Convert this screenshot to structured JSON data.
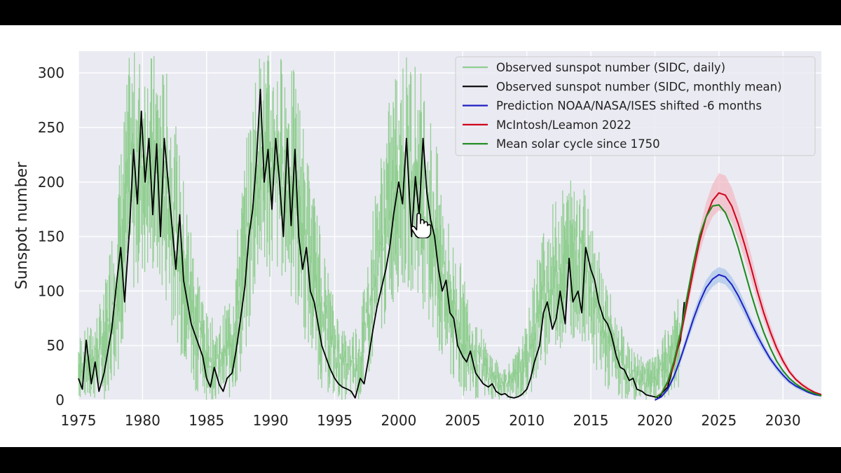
{
  "chart_data": {
    "type": "line",
    "xlim": [
      1975,
      2033
    ],
    "ylim": [
      0,
      320
    ],
    "ylabel": "Sunspot number",
    "xlabel": "",
    "grid": true,
    "legend_position": "top-right",
    "x_ticks": [
      "1975",
      "1980",
      "1985",
      "1990",
      "1995",
      "2000",
      "2005",
      "2010",
      "2015",
      "2020",
      "2025",
      "2030"
    ],
    "y_ticks": [
      "0",
      "50",
      "100",
      "150",
      "200",
      "250",
      "300"
    ],
    "series": [
      {
        "name": "Observed sunspot number (SIDC, daily)",
        "color": "#8fce8f",
        "style": "band",
        "x": [
          1975.0,
          1976.0,
          1977.0,
          1978.0,
          1979.0,
          1980.0,
          1981.0,
          1982.0,
          1983.0,
          1984.0,
          1985.0,
          1986.0,
          1987.0,
          1988.0,
          1989.0,
          1990.0,
          1991.0,
          1992.0,
          1993.0,
          1994.0,
          1995.0,
          1996.0,
          1997.0,
          1998.0,
          1999.0,
          2000.0,
          2001.0,
          2002.0,
          2003.0,
          2004.0,
          2005.0,
          2006.0,
          2007.0,
          2008.0,
          2009.0,
          2010.0,
          2011.0,
          2012.0,
          2013.0,
          2014.0,
          2015.0,
          2016.0,
          2017.0,
          2018.0,
          2019.0,
          2020.0,
          2021.0,
          2022.0
        ],
        "low": [
          0,
          0,
          0,
          20,
          90,
          110,
          110,
          80,
          40,
          10,
          0,
          0,
          0,
          30,
          110,
          110,
          110,
          80,
          40,
          10,
          0,
          0,
          0,
          30,
          70,
          100,
          100,
          80,
          40,
          15,
          0,
          0,
          0,
          0,
          0,
          0,
          20,
          40,
          50,
          60,
          40,
          10,
          0,
          0,
          0,
          0,
          0,
          10
        ],
        "high": [
          60,
          70,
          100,
          200,
          320,
          320,
          320,
          300,
          220,
          150,
          80,
          70,
          110,
          230,
          320,
          320,
          320,
          300,
          220,
          150,
          90,
          60,
          80,
          180,
          260,
          320,
          320,
          300,
          230,
          160,
          120,
          80,
          50,
          30,
          40,
          70,
          150,
          180,
          200,
          220,
          180,
          120,
          80,
          50,
          40,
          40,
          70,
          100
        ]
      },
      {
        "name": "Observed sunspot number (SIDC, monthly mean)",
        "color": "#000000",
        "style": "line",
        "x": [
          1975.0,
          1975.3,
          1975.6,
          1976.0,
          1976.3,
          1976.6,
          1977.0,
          1977.3,
          1977.6,
          1978.0,
          1978.3,
          1978.6,
          1979.0,
          1979.3,
          1979.6,
          1979.9,
          1980.2,
          1980.5,
          1980.8,
          1981.1,
          1981.4,
          1981.7,
          1982.0,
          1982.3,
          1982.6,
          1982.9,
          1983.2,
          1983.5,
          1983.8,
          1984.1,
          1984.4,
          1984.7,
          1985.0,
          1985.3,
          1985.6,
          1986.0,
          1986.3,
          1986.6,
          1987.0,
          1987.3,
          1987.6,
          1988.0,
          1988.3,
          1988.6,
          1988.9,
          1989.2,
          1989.5,
          1989.8,
          1990.1,
          1990.4,
          1990.7,
          1991.0,
          1991.3,
          1991.6,
          1991.9,
          1992.2,
          1992.5,
          1992.8,
          1993.1,
          1993.4,
          1993.7,
          1994.0,
          1994.3,
          1994.6,
          1995.0,
          1995.3,
          1995.6,
          1996.0,
          1996.3,
          1996.6,
          1997.0,
          1997.3,
          1997.6,
          1998.0,
          1998.3,
          1998.6,
          1999.0,
          1999.3,
          1999.6,
          2000.0,
          2000.3,
          2000.6,
          2001.0,
          2001.3,
          2001.6,
          2001.9,
          2002.2,
          2002.5,
          2002.8,
          2003.1,
          2003.4,
          2003.7,
          2004.0,
          2004.3,
          2004.6,
          2005.0,
          2005.3,
          2005.6,
          2006.0,
          2006.3,
          2006.6,
          2007.0,
          2007.3,
          2007.6,
          2008.0,
          2008.3,
          2008.6,
          2009.0,
          2009.3,
          2009.6,
          2010.0,
          2010.3,
          2010.6,
          2011.0,
          2011.3,
          2011.6,
          2012.0,
          2012.3,
          2012.6,
          2013.0,
          2013.3,
          2013.6,
          2014.0,
          2014.3,
          2014.6,
          2015.0,
          2015.3,
          2015.6,
          2016.0,
          2016.3,
          2016.6,
          2017.0,
          2017.3,
          2017.6,
          2018.0,
          2018.3,
          2018.6,
          2019.0,
          2019.3,
          2019.6,
          2020.0,
          2020.3,
          2020.6,
          2021.0,
          2021.3,
          2021.6,
          2022.0,
          2022.3
        ],
        "y": [
          20,
          10,
          55,
          15,
          35,
          8,
          25,
          45,
          65,
          110,
          140,
          90,
          160,
          230,
          180,
          265,
          200,
          240,
          170,
          235,
          150,
          240,
          200,
          160,
          120,
          170,
          110,
          90,
          70,
          60,
          50,
          40,
          20,
          12,
          30,
          14,
          8,
          20,
          25,
          45,
          70,
          105,
          150,
          175,
          220,
          285,
          200,
          230,
          175,
          240,
          200,
          150,
          240,
          160,
          230,
          150,
          120,
          140,
          100,
          90,
          70,
          50,
          40,
          30,
          20,
          15,
          12,
          10,
          8,
          2,
          20,
          15,
          35,
          65,
          85,
          100,
          120,
          140,
          170,
          200,
          180,
          240,
          150,
          205,
          170,
          240,
          190,
          165,
          150,
          120,
          100,
          110,
          80,
          75,
          50,
          40,
          35,
          45,
          25,
          20,
          15,
          12,
          15,
          8,
          5,
          6,
          3,
          2,
          3,
          5,
          10,
          20,
          35,
          50,
          80,
          90,
          65,
          75,
          100,
          70,
          130,
          90,
          100,
          80,
          140,
          120,
          110,
          90,
          75,
          70,
          60,
          40,
          30,
          28,
          18,
          20,
          10,
          8,
          5,
          4,
          3,
          2,
          7,
          12,
          25,
          40,
          55,
          90
        ]
      },
      {
        "name": "Prediction NOAA/NASA/ISES shifted -6 months",
        "color": "#1f1fc4",
        "band_color": "#a8c4ea",
        "style": "line",
        "x": [
          2020.0,
          2020.5,
          2021.0,
          2021.5,
          2022.0,
          2022.5,
          2023.0,
          2023.5,
          2024.0,
          2024.5,
          2025.0,
          2025.5,
          2026.0,
          2026.5,
          2027.0,
          2027.5,
          2028.0,
          2028.5,
          2029.0,
          2029.5,
          2030.0,
          2030.5,
          2031.0,
          2031.5,
          2032.0,
          2032.5,
          2033.0
        ],
        "y": [
          0,
          3,
          10,
          22,
          38,
          56,
          74,
          90,
          103,
          111,
          115,
          113,
          106,
          96,
          84,
          71,
          59,
          48,
          38,
          30,
          23,
          17,
          13,
          10,
          7,
          5,
          4
        ],
        "low": [
          0,
          2,
          8,
          19,
          34,
          51,
          68,
          84,
          96,
          104,
          108,
          106,
          99,
          89,
          78,
          66,
          54,
          44,
          35,
          27,
          20,
          15,
          11,
          8,
          6,
          4,
          3
        ],
        "high": [
          0,
          4,
          12,
          25,
          42,
          61,
          80,
          96,
          110,
          118,
          122,
          120,
          113,
          103,
          90,
          76,
          64,
          52,
          41,
          33,
          26,
          19,
          15,
          12,
          9,
          6,
          5
        ]
      },
      {
        "name": "McIntosh/Leamon 2022",
        "color": "#d0021b",
        "band_color": "#f2b8c2",
        "style": "line",
        "x": [
          2020.0,
          2020.5,
          2021.0,
          2021.5,
          2022.0,
          2022.5,
          2023.0,
          2023.5,
          2024.0,
          2024.5,
          2025.0,
          2025.5,
          2026.0,
          2026.5,
          2027.0,
          2027.5,
          2028.0,
          2028.5,
          2029.0,
          2029.5,
          2030.0,
          2030.5,
          2031.0,
          2031.5,
          2032.0,
          2032.5,
          2033.0
        ],
        "y": [
          2,
          6,
          16,
          33,
          58,
          88,
          118,
          146,
          168,
          183,
          190,
          188,
          178,
          162,
          143,
          122,
          100,
          80,
          63,
          48,
          36,
          26,
          19,
          14,
          10,
          7,
          5
        ],
        "low": [
          1,
          5,
          14,
          30,
          53,
          81,
          109,
          135,
          155,
          168,
          174,
          172,
          163,
          148,
          130,
          111,
          91,
          73,
          57,
          43,
          32,
          24,
          17,
          12,
          9,
          6,
          4
        ],
        "high": [
          3,
          8,
          18,
          36,
          63,
          95,
          127,
          157,
          181,
          198,
          208,
          206,
          195,
          177,
          157,
          134,
          110,
          88,
          70,
          53,
          40,
          29,
          21,
          16,
          12,
          8,
          6
        ]
      },
      {
        "name": "Mean solar cycle since 1750",
        "color": "#1a8a1a",
        "style": "line",
        "x": [
          2020.0,
          2020.5,
          2021.0,
          2021.5,
          2022.0,
          2022.5,
          2023.0,
          2023.5,
          2024.0,
          2024.5,
          2025.0,
          2025.5,
          2026.0,
          2026.5,
          2027.0,
          2027.5,
          2028.0,
          2028.5,
          2029.0,
          2029.5,
          2030.0,
          2030.5,
          2031.0,
          2031.5,
          2032.0,
          2032.5,
          2033.0
        ],
        "y": [
          2,
          6,
          17,
          36,
          62,
          94,
          125,
          151,
          168,
          178,
          179,
          172,
          158,
          140,
          119,
          98,
          79,
          62,
          48,
          36,
          27,
          20,
          15,
          11,
          8,
          6,
          4
        ]
      }
    ]
  },
  "legend": {
    "items": [
      {
        "label": "Observed sunspot number (SIDC, daily)",
        "color": "#8fce8f"
      },
      {
        "label": "Observed sunspot number (SIDC, monthly mean)",
        "color": "#000000"
      },
      {
        "label": "Prediction NOAA/NASA/ISES shifted -6 months",
        "color": "#1f1fc4"
      },
      {
        "label": "McIntosh/Leamon 2022",
        "color": "#d0021b"
      },
      {
        "label": "Mean solar cycle since 1750",
        "color": "#1a8a1a"
      }
    ]
  },
  "cursor": {
    "icon": "hand-pointer-icon"
  }
}
